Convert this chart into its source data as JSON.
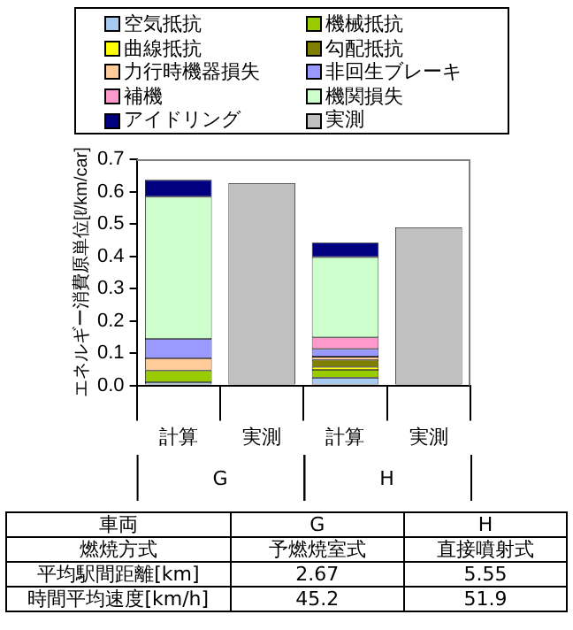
{
  "chart_data": [
    {
      "type": "bar",
      "stacked": true,
      "ylabel": "エネルギー消費原単位[ℓ/km/car]",
      "categories": [
        "計算",
        "実測",
        "計算",
        "実測"
      ],
      "annotations": [
        "G",
        "H"
      ],
      "legend": "top",
      "ylim": [
        0,
        0.7
      ],
      "yticks": [
        {
          "value": 0,
          "label": "0.0"
        },
        0.1,
        0.2,
        0.3,
        0.4,
        0.5,
        0.6,
        0.7
      ],
      "grid": false,
      "series": [
        {
          "name": "空気抵抗",
          "color": "#a6caf0",
          "values": [
            0.01,
            null,
            0.024,
            null
          ]
        },
        {
          "name": "機械抵抗",
          "color": "#99cc00",
          "values": [
            0.036,
            null,
            0.024,
            null
          ]
        },
        {
          "name": "曲線抵抗",
          "color": "#ffff00",
          "values": [
            null,
            null,
            0.009,
            null
          ]
        },
        {
          "name": "勾配抵抗",
          "color": "#808000",
          "values": [
            null,
            null,
            0.022,
            null
          ]
        },
        {
          "name": "力行時機器損失",
          "color": "#ffcc99",
          "values": [
            0.038,
            null,
            0.01,
            null
          ]
        },
        {
          "name": "非回生ブレーキ",
          "color": "#9999ff",
          "values": [
            0.06,
            null,
            0.024,
            null
          ]
        },
        {
          "name": "補機",
          "color": "#ff99cc",
          "values": [
            null,
            null,
            0.036,
            null
          ]
        },
        {
          "name": "機関損失",
          "color": "#ccffcc",
          "values": [
            0.44,
            null,
            0.248,
            null
          ]
        },
        {
          "name": "アイドリング",
          "color": "#000080",
          "values": [
            0.052,
            null,
            0.045,
            null
          ]
        },
        {
          "name": "実測",
          "color": "#c0c0c0",
          "values": [
            null,
            0.626,
            null,
            0.489
          ]
        }
      ]
    },
    {
      "type": "other",
      "annotations": [
        "車両",
        "G",
        "H",
        "燃焼方式",
        "予燃焼室式",
        "直接噴射式",
        "平均駅間距離[km]",
        "2.67",
        "5.55",
        "時間平均速度[km/h]",
        "45.2",
        "51.9"
      ]
    }
  ]
}
